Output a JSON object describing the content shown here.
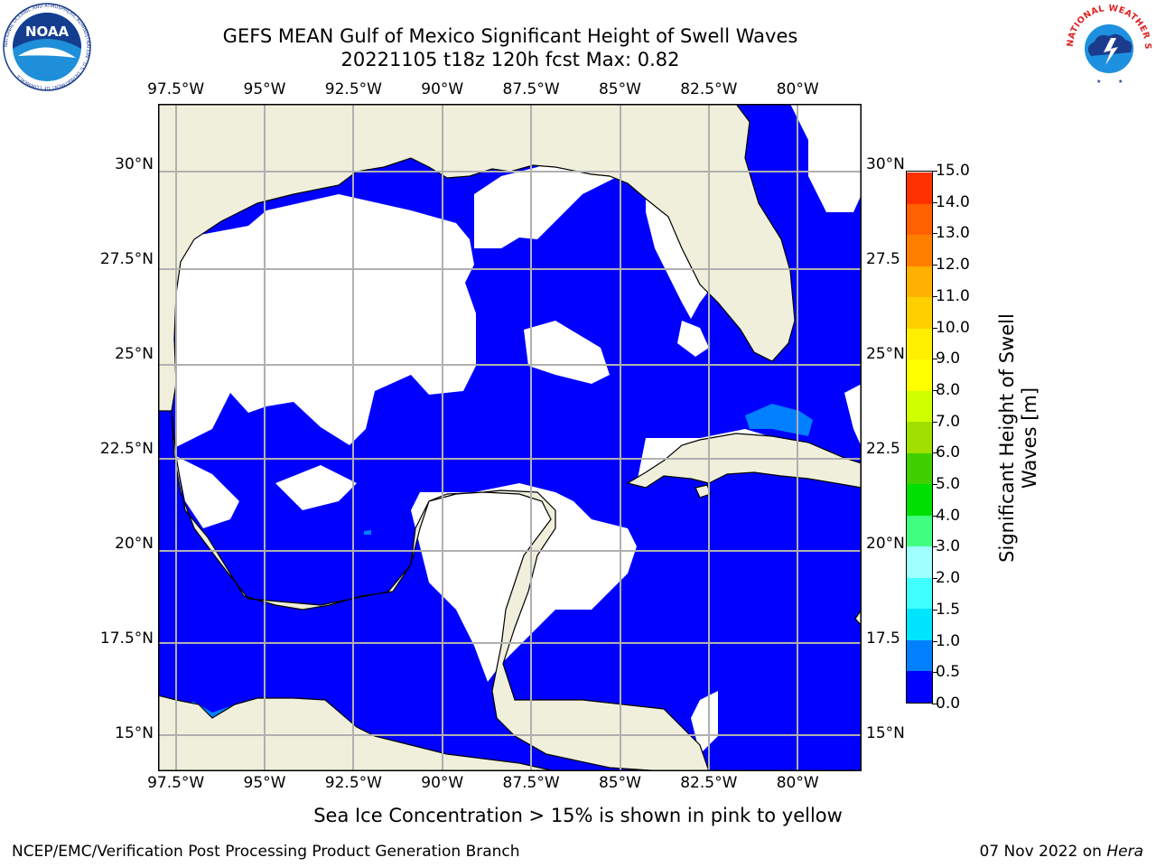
{
  "title": {
    "line1": "GEFS MEAN Gulf of Mexico Significant Height of Swell Waves",
    "line2": "20221105 t18z 120h fcst   Max: 0.82"
  },
  "map": {
    "type": "filled-contour-map",
    "lon_range": [
      -98.0,
      -78.2
    ],
    "lat_range": [
      14.0,
      31.6
    ],
    "grid": true,
    "lon_ticks": [
      "97.5°W",
      "95°W",
      "92.5°W",
      "90°W",
      "87.5°W",
      "85°W",
      "82.5°W",
      "80°W"
    ],
    "lon_tick_values": [
      -97.5,
      -95,
      -92.5,
      -90,
      -87.5,
      -85,
      -82.5,
      -80
    ],
    "lat_ticks": [
      "15°N",
      "17.5°N",
      "20°N",
      "22.5°N",
      "25°N",
      "27.5°N",
      "30°N"
    ],
    "lat_tick_values": [
      15,
      17.5,
      20,
      22.5,
      25,
      27.5,
      30
    ],
    "lat_ticks_right": [
      "15°N",
      "17.5",
      "20°N",
      "22.5",
      "25°N",
      "27.5",
      "30°N"
    ],
    "colors": {
      "land": "#efefdc",
      "zero": "#0000ff",
      "half": "#0080ff",
      "grid": "#b0b0b0"
    }
  },
  "colorbar": {
    "label": "Significant Height of Swell Waves [m]",
    "label_line1": "Significant Height of Swell",
    "label_line2": "Waves [m]",
    "ticks": [
      "0.0",
      "0.5",
      "1.0",
      "1.5",
      "2.0",
      "3.0",
      "4.0",
      "5.0",
      "6.0",
      "7.0",
      "8.0",
      "9.0",
      "10.0",
      "11.0",
      "12.0",
      "13.0",
      "14.0",
      "15.0"
    ],
    "colors": [
      "#0000ff",
      "#0080ff",
      "#00e5ff",
      "#40ffff",
      "#a0ffff",
      "#40ff80",
      "#00e000",
      "#40d000",
      "#a0e000",
      "#d0ff00",
      "#ffff00",
      "#fff000",
      "#ffd000",
      "#ffb000",
      "#ff8000",
      "#ff6000",
      "#ff3000",
      "#ff0000"
    ]
  },
  "footnote": "Sea Ice Concentration > 15% is shown in pink to yellow",
  "credit": "NCEP/EMC/Verification Post Processing Product Generation Branch",
  "run_date": "07 Nov 2022 on",
  "run_host": "Hera",
  "logos": {
    "noaa_text": "NOAA",
    "noaa_ring": "NATIONAL OCEANIC AND ATMOSPHERIC ADMINISTRATION · U.S. DEPARTMENT OF COMMERCE",
    "nws_ring": "NATIONAL WEATHER SERVICE"
  }
}
